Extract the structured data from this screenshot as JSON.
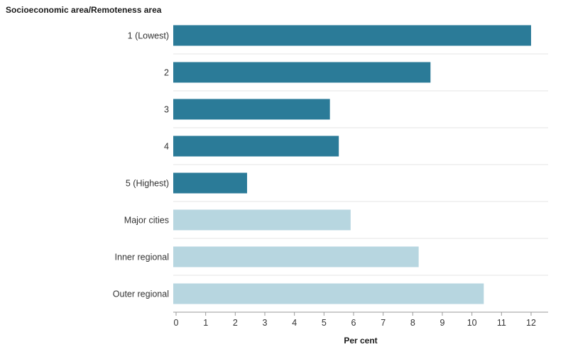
{
  "chart_data": {
    "type": "bar",
    "orientation": "horizontal",
    "title": "",
    "ylabel": "Socioeconomic area/Remoteness area",
    "xlabel": "Per cent",
    "categories": [
      "1 (Lowest)",
      "2",
      "3",
      "4",
      "5 (Highest)",
      "Major cities",
      "Inner regional",
      "Outer regional"
    ],
    "values": [
      12.0,
      8.6,
      5.2,
      5.5,
      2.4,
      5.9,
      8.2,
      10.4
    ],
    "groups": [
      "socioeconomic",
      "socioeconomic",
      "socioeconomic",
      "socioeconomic",
      "socioeconomic",
      "remoteness",
      "remoteness",
      "remoteness"
    ],
    "colors": {
      "socioeconomic": "#2b7b98",
      "remoteness": "#b7d6e0"
    },
    "xlim": [
      0,
      12.6
    ],
    "xticks": [
      0,
      1,
      2,
      3,
      4,
      5,
      6,
      7,
      8,
      9,
      10,
      11,
      12
    ],
    "grid": false,
    "legend": "none"
  }
}
